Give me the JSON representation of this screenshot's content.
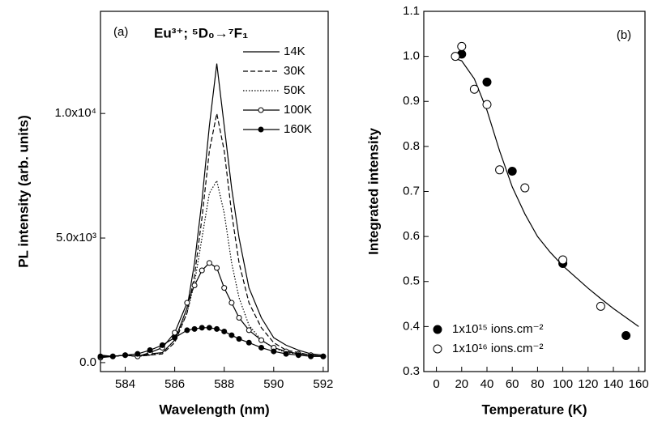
{
  "chart_data": [
    {
      "type": "line",
      "annotations": [
        "(a)",
        "Eu³⁺;  ⁵D₀→⁷F₁"
      ],
      "x_label": "Wavelength (nm)",
      "y_label": "PL intensity (arb. units)",
      "xlim": [
        583,
        592.2
      ],
      "ylim": [
        -360,
        14100
      ],
      "xticks": [
        584,
        586,
        588,
        590,
        592
      ],
      "yticks": [
        {
          "value": 0,
          "label": "0.0"
        },
        {
          "value": 5000,
          "label": "5.0x10³"
        },
        {
          "value": 10000,
          "label": "1.0x10⁴"
        }
      ],
      "legend": "upper right",
      "x": [
        583,
        583.5,
        584,
        584.5,
        585,
        585.5,
        586,
        586.5,
        586.8,
        587.1,
        587.4,
        587.7,
        588.0,
        588.3,
        588.6,
        589,
        589.5,
        590,
        590.5,
        591,
        591.5,
        592
      ],
      "series": [
        {
          "name": "14K",
          "color": "#000000",
          "line_style": "solid",
          "marker": "none",
          "values": [
            300,
            250,
            300,
            250,
            350,
            400,
            900,
            2200,
            4000,
            6500,
            9500,
            12000,
            9500,
            7000,
            5000,
            3000,
            1800,
            1000,
            700,
            500,
            350,
            300
          ]
        },
        {
          "name": "30K",
          "color": "#000000",
          "line_style": "dashed",
          "marker": "none",
          "values": [
            250,
            250,
            300,
            250,
            300,
            350,
            800,
            2000,
            3500,
            5800,
            8500,
            10000,
            8500,
            6000,
            4000,
            2400,
            1400,
            800,
            500,
            400,
            300,
            250
          ]
        },
        {
          "name": "50K",
          "color": "#000000",
          "line_style": "dotted",
          "marker": "none",
          "values": [
            250,
            250,
            300,
            250,
            300,
            400,
            900,
            2000,
            3200,
            5000,
            6800,
            7300,
            6000,
            4000,
            2600,
            1500,
            900,
            600,
            400,
            350,
            300,
            250
          ]
        },
        {
          "name": "100K",
          "color": "#000000",
          "line_style": "solid",
          "marker": "open-circle",
          "values": [
            200,
            250,
            300,
            250,
            400,
            600,
            1200,
            2400,
            3100,
            3700,
            4000,
            3800,
            3000,
            2400,
            1800,
            1300,
            900,
            600,
            450,
            350,
            300,
            250
          ]
        },
        {
          "name": "160K",
          "color": "#000000",
          "line_style": "solid",
          "marker": "filled-circle",
          "values": [
            250,
            250,
            300,
            350,
            500,
            700,
            1000,
            1300,
            1350,
            1400,
            1400,
            1350,
            1250,
            1100,
            950,
            800,
            600,
            450,
            350,
            300,
            250,
            250
          ]
        }
      ]
    },
    {
      "type": "scatter",
      "annotations": [
        "(b)"
      ],
      "x_label": "Temperature (K)",
      "y_label": "Integrated intensity",
      "xlim": [
        -10,
        165
      ],
      "ylim": [
        0.3,
        1.1
      ],
      "xticks": [
        0,
        20,
        40,
        60,
        80,
        100,
        120,
        140,
        160
      ],
      "yticks": [
        0.3,
        0.4,
        0.5,
        0.6,
        0.7,
        0.8,
        0.9,
        {
          "value": 1,
          "label": "1.0"
        },
        1.1
      ],
      "legend": "lower left",
      "series": [
        {
          "name": "1x10¹⁵ ions.cm⁻²",
          "color": "#000000",
          "marker": "filled-circle",
          "x": [
            20,
            40,
            60,
            100,
            150
          ],
          "values": [
            1.005,
            0.943,
            0.745,
            0.54,
            0.38
          ]
        },
        {
          "name": "1x10¹⁶ ions.cm⁻²",
          "color": "#000000",
          "marker": "open-circle",
          "x": [
            15,
            20,
            30,
            40,
            50,
            70,
            100,
            130
          ],
          "values": [
            1.0,
            1.022,
            0.927,
            0.893,
            0.748,
            0.708,
            0.548,
            0.445
          ]
        }
      ],
      "fit_curve": {
        "color": "#000000",
        "x": [
          15,
          20,
          30,
          40,
          50,
          60,
          70,
          80,
          90,
          100,
          110,
          120,
          130,
          140,
          150,
          160
        ],
        "values": [
          0.995,
          0.99,
          0.95,
          0.88,
          0.79,
          0.71,
          0.65,
          0.6,
          0.565,
          0.535,
          0.51,
          0.485,
          0.462,
          0.44,
          0.42,
          0.4
        ]
      }
    }
  ]
}
